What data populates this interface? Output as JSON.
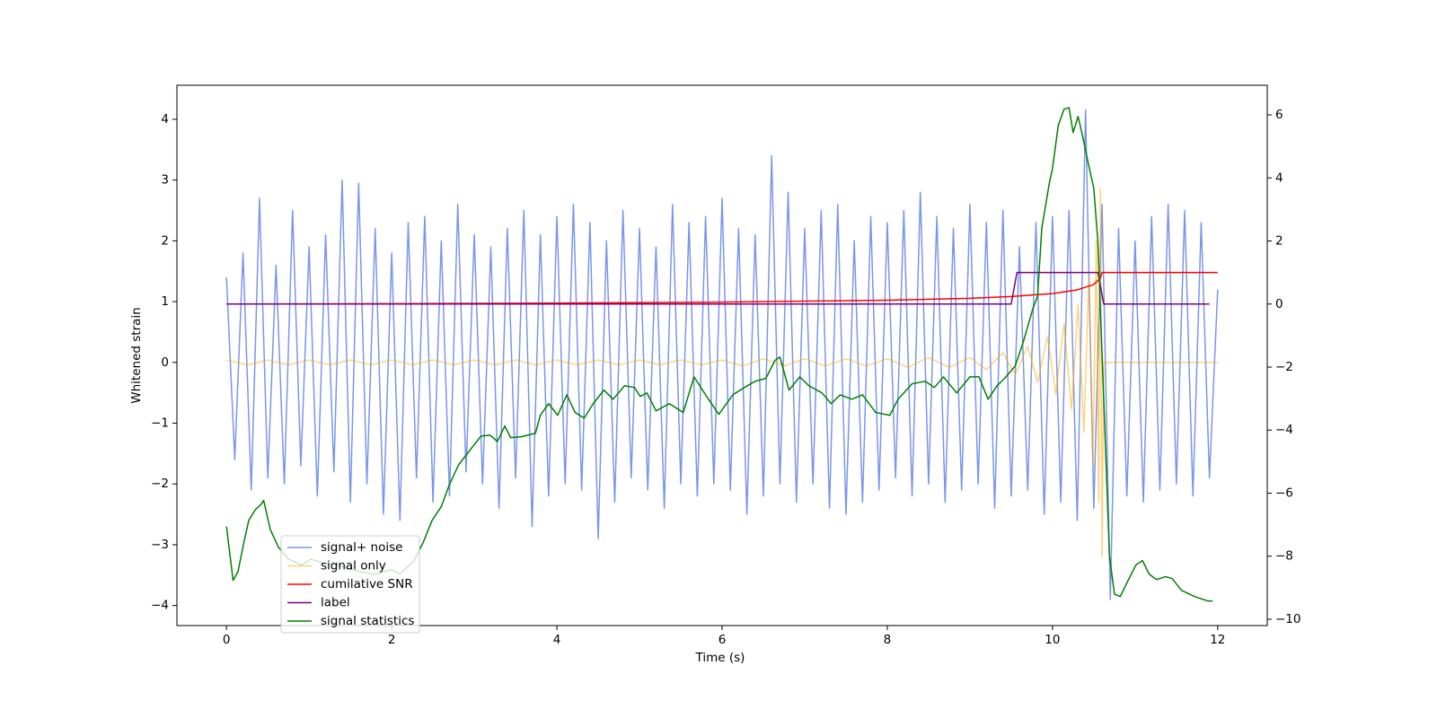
{
  "chart_data": {
    "type": "line",
    "xlabel": "Time (s)",
    "ylabel": "Whitened strain",
    "xlim": [
      -0.6,
      12.6
    ],
    "xticks": [
      0,
      2,
      4,
      6,
      8,
      10,
      12
    ],
    "ylim": [
      -4.33,
      4.56
    ],
    "yticks": [
      {
        "value": -4,
        "label": "−4"
      },
      {
        "value": -3,
        "label": "−3"
      },
      {
        "value": -2,
        "label": "−2"
      },
      {
        "value": -1,
        "label": "−1"
      },
      0,
      1,
      2,
      3,
      4
    ],
    "y2lim": [
      -10.2,
      6.94
    ],
    "y2ticks": [
      {
        "value": -10,
        "label": "−10"
      },
      {
        "value": -8,
        "label": "−8"
      },
      {
        "value": -6,
        "label": "−6"
      },
      {
        "value": -4,
        "label": "−4"
      },
      {
        "value": -2,
        "label": "−2"
      },
      0,
      2,
      4,
      6
    ],
    "grid": false,
    "legend": "lower left",
    "series": [
      {
        "name": "signal+ noise",
        "color": "royalblue",
        "alpha": 0.7,
        "x": [
          0,
          0.1,
          0.2,
          0.3,
          0.4,
          0.5,
          0.6,
          0.7,
          0.8,
          0.9,
          1,
          1.1,
          1.2,
          1.3,
          1.4,
          1.5,
          1.6,
          1.7,
          1.8,
          1.9,
          2,
          2.1,
          2.2,
          2.3,
          2.4,
          2.5,
          2.6,
          2.7,
          2.8,
          2.9,
          3,
          3.1,
          3.2,
          3.3,
          3.4,
          3.5,
          3.6,
          3.7,
          3.8,
          3.9,
          4,
          4.1,
          4.2,
          4.3,
          4.4,
          4.5,
          4.6,
          4.7,
          4.8,
          4.9,
          5,
          5.1,
          5.2,
          5.3,
          5.4,
          5.5,
          5.6,
          5.7,
          5.8,
          5.9,
          6,
          6.1,
          6.2,
          6.3,
          6.4,
          6.5,
          6.6,
          6.7,
          6.8,
          6.9,
          7,
          7.1,
          7.2,
          7.3,
          7.4,
          7.5,
          7.6,
          7.7,
          7.8,
          7.9,
          8,
          8.1,
          8.2,
          8.3,
          8.4,
          8.5,
          8.6,
          8.7,
          8.8,
          8.9,
          9,
          9.1,
          9.2,
          9.3,
          9.4,
          9.5,
          9.6,
          9.7,
          9.8,
          9.9,
          10,
          10.1,
          10.2,
          10.3,
          10.4,
          10.5,
          10.6,
          10.7,
          10.8,
          10.9,
          11,
          11.1,
          11.2,
          11.3,
          11.4,
          11.5,
          11.6,
          11.7,
          11.8,
          11.9,
          12
        ],
        "values": [
          1.4,
          -1.6,
          1.8,
          -2.1,
          2.7,
          -1.9,
          1.6,
          -2.0,
          2.5,
          -1.7,
          1.9,
          -2.2,
          2.1,
          -1.8,
          3.0,
          -2.3,
          2.95,
          -2.0,
          2.2,
          -2.5,
          1.8,
          -2.6,
          2.3,
          -1.9,
          2.4,
          -2.3,
          2.0,
          -2.2,
          2.6,
          -1.8,
          2.1,
          -2.0,
          1.9,
          -2.4,
          2.2,
          -1.9,
          2.5,
          -2.7,
          2.1,
          -2.2,
          2.4,
          -2.0,
          2.6,
          -2.1,
          2.3,
          -2.9,
          2.0,
          -2.3,
          2.5,
          -1.9,
          2.2,
          -2.1,
          1.9,
          -2.4,
          2.6,
          -2.0,
          2.3,
          -2.2,
          2.4,
          -2.0,
          2.7,
          -2.1,
          2.2,
          -2.5,
          2.1,
          -2.2,
          3.4,
          -2.0,
          2.8,
          -2.3,
          2.2,
          -2.0,
          2.5,
          -2.4,
          2.6,
          -2.5,
          2.0,
          -2.3,
          2.4,
          -2.1,
          2.3,
          -1.9,
          2.5,
          -2.2,
          2.8,
          -2.0,
          2.4,
          -2.3,
          2.2,
          -2.1,
          2.6,
          -2.0,
          2.3,
          -2.4,
          2.5,
          -2.2,
          1.9,
          -2.1,
          2.3,
          -2.5,
          2.4,
          -2.3,
          2.5,
          -2.6,
          4.15,
          -2.4,
          2.6,
          -3.9,
          2.2,
          -2.2,
          2.0,
          -2.3,
          2.4,
          -2.1,
          2.6,
          -2.0,
          2.5,
          -2.2,
          2.3,
          -1.9,
          1.2
        ]
      },
      {
        "name": "signal only",
        "color": "orange",
        "alpha": 0.5,
        "x": [
          0,
          0.25,
          0.5,
          0.75,
          1,
          1.25,
          1.5,
          1.75,
          2,
          2.25,
          2.5,
          2.75,
          3,
          3.25,
          3.5,
          3.75,
          4,
          4.25,
          4.5,
          4.75,
          5,
          5.25,
          5.5,
          5.75,
          6,
          6.25,
          6.5,
          6.75,
          7,
          7.25,
          7.5,
          7.75,
          8,
          8.25,
          8.5,
          8.75,
          9,
          9.2,
          9.4,
          9.55,
          9.7,
          9.82,
          9.94,
          10.04,
          10.14,
          10.23,
          10.31,
          10.38,
          10.44,
          10.49,
          10.53,
          10.56,
          10.58,
          10.6,
          10.62,
          12
        ],
        "values": [
          0.04,
          -0.04,
          0.04,
          -0.04,
          0.04,
          -0.04,
          0.04,
          -0.04,
          0.04,
          -0.04,
          0.04,
          -0.04,
          0.04,
          -0.04,
          0.04,
          -0.04,
          0.04,
          -0.04,
          0.04,
          -0.04,
          0.04,
          -0.04,
          0.04,
          -0.04,
          0.04,
          -0.06,
          0.06,
          -0.06,
          0.06,
          -0.06,
          0.06,
          -0.06,
          0.06,
          -0.08,
          0.08,
          -0.08,
          0.08,
          -0.12,
          0.16,
          -0.2,
          0.27,
          -0.33,
          0.42,
          -0.52,
          0.63,
          -0.78,
          0.95,
          -1.15,
          1.4,
          -1.7,
          2.0,
          -2.3,
          2.85,
          -3.2,
          0,
          0
        ]
      },
      {
        "name": "cumilative SNR",
        "color": "red",
        "axis": "y2",
        "x": [
          0,
          2,
          4,
          6,
          8,
          9,
          9.5,
          10,
          10.3,
          10.5,
          10.58,
          10.6,
          12
        ],
        "values": [
          0,
          0.01,
          0.03,
          0.06,
          0.12,
          0.18,
          0.24,
          0.33,
          0.45,
          0.62,
          0.82,
          1,
          1
        ]
      },
      {
        "name": "label",
        "color": "purple",
        "axis": "y2",
        "x": [
          0,
          9.5,
          9.57,
          10.55,
          10.62,
          11.9
        ],
        "values": [
          0,
          0,
          1,
          1,
          0,
          0
        ]
      },
      {
        "name": "signal statistics",
        "color": "green",
        "axis": "y2",
        "x": [
          0,
          0.08,
          0.14,
          0.21,
          0.27,
          0.35,
          0.42,
          0.45,
          0.53,
          0.63,
          0.75,
          0.91,
          1.02,
          1.18,
          1.35,
          1.56,
          1.78,
          2.0,
          2.1,
          2.27,
          2.38,
          2.49,
          2.6,
          2.7,
          2.81,
          2.92,
          3.08,
          3.19,
          3.28,
          3.37,
          3.44,
          3.57,
          3.74,
          3.8,
          3.9,
          4.01,
          4.12,
          4.22,
          4.33,
          4.44,
          4.57,
          4.68,
          4.82,
          4.94,
          5.01,
          5.09,
          5.2,
          5.36,
          5.53,
          5.66,
          5.8,
          5.96,
          6.13,
          6.27,
          6.4,
          6.53,
          6.64,
          6.7,
          6.81,
          6.94,
          7.05,
          7.21,
          7.32,
          7.43,
          7.57,
          7.7,
          7.86,
          8.03,
          8.13,
          8.3,
          8.46,
          8.57,
          8.68,
          8.84,
          9.0,
          9.11,
          9.22,
          9.33,
          9.42,
          9.55,
          9.65,
          9.76,
          9.82,
          9.87,
          9.96,
          10.0,
          10.07,
          10.14,
          10.2,
          10.25,
          10.31,
          10.36,
          10.44,
          10.5,
          10.55,
          10.61,
          10.69,
          10.75,
          10.82,
          10.9,
          11.01,
          11.09,
          11.17,
          11.26,
          11.37,
          11.45,
          11.56,
          11.72,
          11.88,
          11.94
        ],
        "values": [
          -7.06,
          -8.77,
          -8.48,
          -7.57,
          -6.86,
          -6.52,
          -6.35,
          -6.23,
          -7.15,
          -7.72,
          -8.09,
          -8.28,
          -8.09,
          -8.23,
          -8.28,
          -8.46,
          -8.57,
          -8.43,
          -8.57,
          -8.14,
          -7.57,
          -6.86,
          -6.43,
          -5.72,
          -5.1,
          -4.73,
          -4.19,
          -4.16,
          -4.36,
          -3.87,
          -4.24,
          -4.21,
          -4.1,
          -3.53,
          -3.16,
          -3.53,
          -2.88,
          -3.44,
          -3.62,
          -3.16,
          -2.73,
          -3.02,
          -2.59,
          -2.65,
          -2.93,
          -2.82,
          -3.39,
          -3.16,
          -3.44,
          -2.31,
          -2.88,
          -3.5,
          -2.88,
          -2.65,
          -2.45,
          -2.36,
          -1.79,
          -1.68,
          -2.73,
          -2.31,
          -2.59,
          -2.82,
          -3.16,
          -2.88,
          -3.02,
          -2.88,
          -3.44,
          -3.53,
          -3.02,
          -2.53,
          -2.45,
          -2.65,
          -2.31,
          -2.82,
          -2.31,
          -2.31,
          -3.02,
          -2.59,
          -2.36,
          -1.96,
          -1.17,
          -0.17,
          0.26,
          2.39,
          3.81,
          4.3,
          5.67,
          6.18,
          6.23,
          5.44,
          5.95,
          5.38,
          4.38,
          3.67,
          1.96,
          -2.31,
          -8.0,
          -9.2,
          -9.28,
          -8.85,
          -8.28,
          -8.14,
          -8.57,
          -8.74,
          -8.65,
          -8.71,
          -9.08,
          -9.28,
          -9.42,
          -9.42
        ]
      }
    ]
  }
}
